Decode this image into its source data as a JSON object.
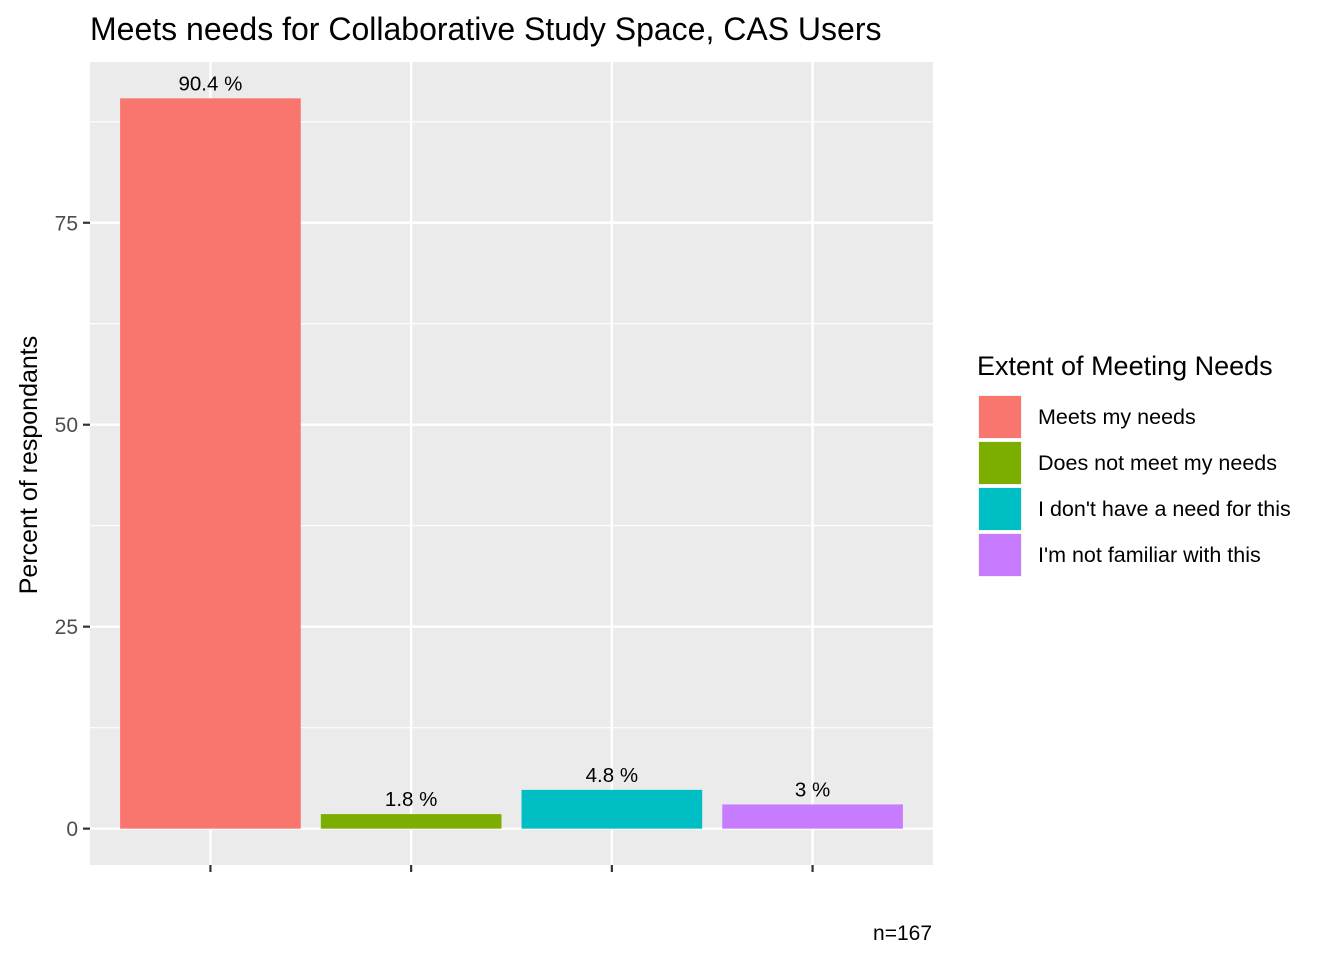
{
  "chart_data": {
    "type": "bar",
    "title": "Meets needs for Collaborative Study Space, CAS Users",
    "xlabel": "",
    "ylabel": "Percent of respondants",
    "categories": [
      "Meets my needs",
      "Does not meet my needs",
      "I don't have a need for this",
      "I'm not familiar with this"
    ],
    "values": [
      90.4,
      1.8,
      4.8,
      3
    ],
    "data_labels": [
      "90.4 %",
      "1.8 %",
      "4.8 %",
      "3 %"
    ],
    "colors": [
      "#F8766D",
      "#7CAE00",
      "#00BFC4",
      "#C77CFF"
    ],
    "y_ticks": [
      0,
      25,
      50,
      75
    ],
    "ylim": [
      -4.5,
      94.9
    ],
    "grid": true,
    "legend": {
      "title": "Extent of Meeting Needs",
      "position": "right"
    },
    "caption": "n=167"
  }
}
